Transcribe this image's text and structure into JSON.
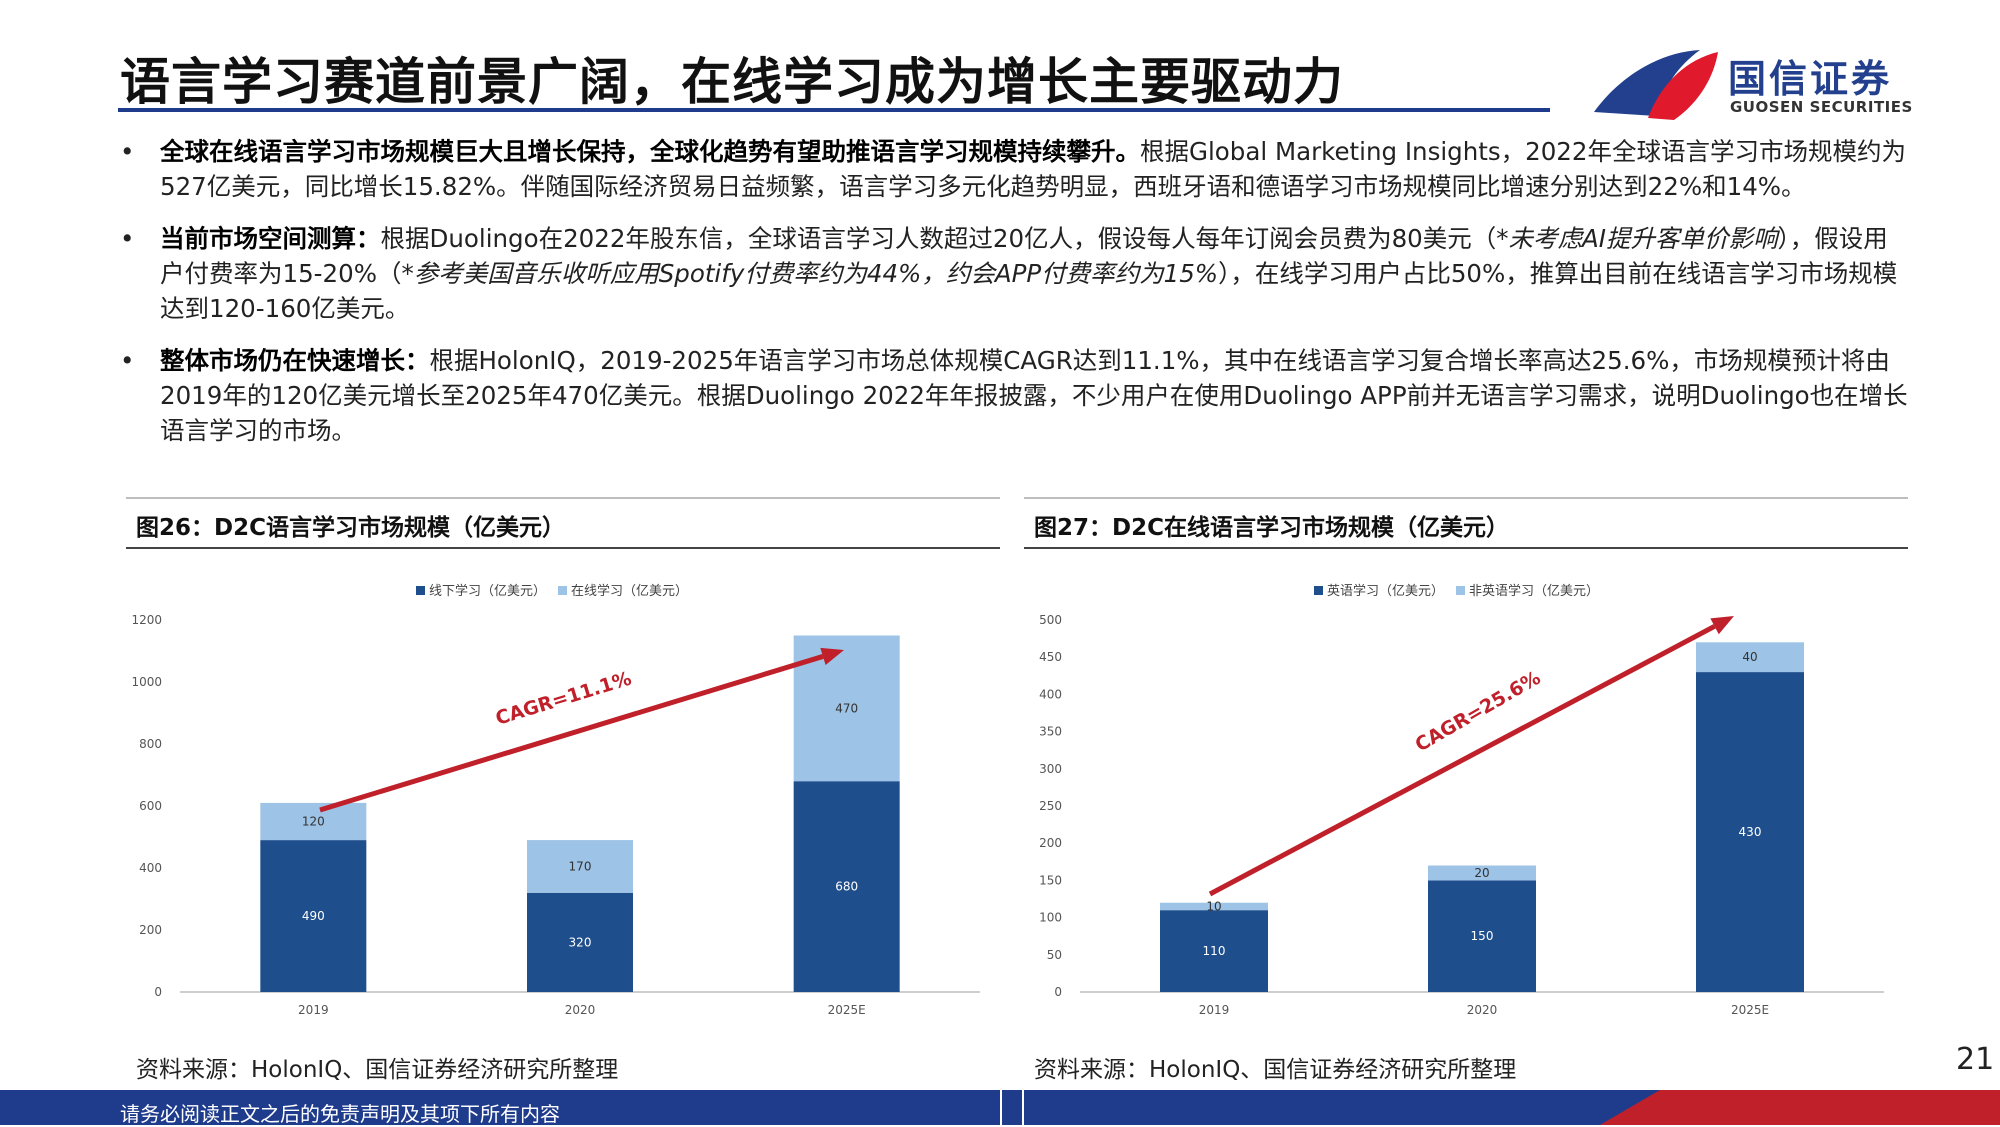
{
  "header": {
    "title": "语言学习赛道前景广阔，在线学习成为增长主要驱动力",
    "logo_cn": "国信证券",
    "logo_en": "GUOSEN SECURITIES"
  },
  "bullets": [
    {
      "bold": "全球在线语言学习市场规模巨大且增长保持，全球化趋势有望助推语言学习规模持续攀升。",
      "text": "根据Global Marketing Insights，2022年全球语言学习市场规模约为527亿美元，同比增长15.82%。伴随国际经济贸易日益频繁，语言学习多元化趋势明显，西班牙语和德语学习市场规模同比增速分别达到22%和14%。",
      "italic": "",
      "text2": ""
    },
    {
      "bold": "当前市场空间测算：",
      "text": "根据Duolingo在2022年股东信，全球语言学习人数超过20亿人，假设每人每年订阅会员费为80美元（",
      "italic": "*未考虑AI提升客单价影响",
      "text2": "），假设用户付费率为15-20%（",
      "italic2": "*参考美国音乐收听应用Spotify付费率约为44%，约会APP付费率约为15%",
      "text3": "），在线学习用户占比50%，推算出目前在线语言学习市场规模达到120-160亿美元。"
    },
    {
      "bold": "整体市场仍在快速增长：",
      "text": "根据HolonIQ，2019-2025年语言学习市场总体规模CAGR达到11.1%，其中在线语言学习复合增长率高达25.6%，市场规模预计将由2019年的120亿美元增长至2025年470亿美元。根据Duolingo 2022年年报披露，不少用户在使用Duolingo APP前并无语言学习需求，说明Duolingo也在增长语言学习的市场。",
      "italic": "",
      "text2": ""
    }
  ],
  "bullet_marker": "•",
  "panels": [
    {
      "title": "图26：D2C语言学习市场规模（亿美元）",
      "source": "资料来源：HolonIQ、国信证券经济研究所整理"
    },
    {
      "title": "图27：D2C在线语言学习市场规模（亿美元）",
      "source": "资料来源：HolonIQ、国信证券经济研究所整理"
    }
  ],
  "chart_data": [
    {
      "type": "bar",
      "stacked": true,
      "categories": [
        "2019",
        "2020",
        "2025E"
      ],
      "series": [
        {
          "name": "线下学习（亿美元）",
          "values": [
            490,
            320,
            680
          ],
          "color": "#1f4e8c"
        },
        {
          "name": "在线学习（亿美元）",
          "values": [
            120,
            170,
            470
          ],
          "color": "#9dc3e6"
        }
      ],
      "ylim": [
        0,
        1200
      ],
      "yticks": [
        0,
        200,
        400,
        600,
        800,
        1000,
        1200
      ],
      "annotation": "CAGR=11.1%",
      "annotation_color": "#c0202a",
      "legend": "top",
      "grid": false
    },
    {
      "type": "bar",
      "stacked": true,
      "categories": [
        "2019",
        "2020",
        "2025E"
      ],
      "series": [
        {
          "name": "英语学习（亿美元）",
          "values": [
            110,
            150,
            430
          ],
          "color": "#1f4e8c"
        },
        {
          "name": "非英语学习（亿美元）",
          "values": [
            10,
            20,
            40
          ],
          "color": "#9dc3e6"
        }
      ],
      "ylim": [
        0,
        500
      ],
      "yticks": [
        0,
        50,
        100,
        150,
        200,
        250,
        300,
        350,
        400,
        450,
        500
      ],
      "annotation": "CAGR=25.6%",
      "annotation_color": "#c0202a",
      "legend": "top",
      "grid": false
    }
  ],
  "page_number": "21",
  "footer": {
    "disclaimer": "请务必阅读正文之后的免责声明及其项下所有内容"
  }
}
